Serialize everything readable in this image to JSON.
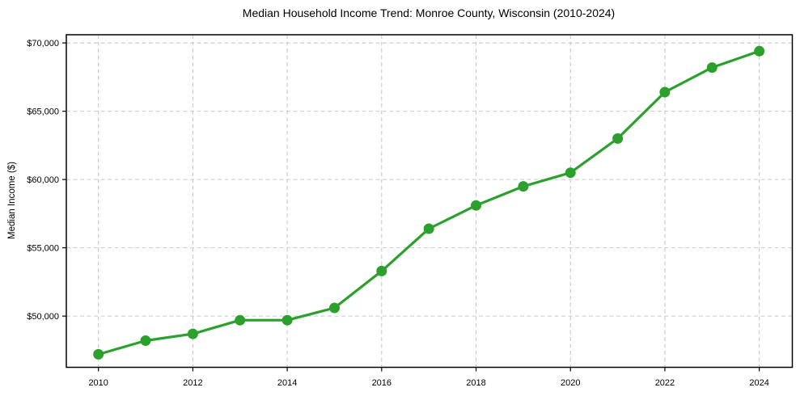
{
  "chart_data": {
    "type": "line",
    "title": "Median Household Income Trend: Monroe County, Wisconsin (2010-2024)",
    "xlabel": "",
    "ylabel": "Median Income ($)",
    "x": [
      2010,
      2011,
      2012,
      2013,
      2014,
      2015,
      2016,
      2017,
      2018,
      2019,
      2020,
      2021,
      2022,
      2023,
      2024
    ],
    "series": [
      {
        "name": "Median Household Income",
        "values": [
          47200,
          48200,
          48700,
          49700,
          49700,
          50600,
          53300,
          56400,
          58100,
          59500,
          60500,
          63000,
          66400,
          68200,
          69400
        ]
      }
    ],
    "x_ticks": [
      2010,
      2012,
      2014,
      2016,
      2018,
      2020,
      2022,
      2024
    ],
    "x_tick_labels": [
      "2010",
      "2012",
      "2014",
      "2016",
      "2018",
      "2020",
      "2022",
      "2024"
    ],
    "y_ticks": [
      50000,
      55000,
      60000,
      65000,
      70000
    ],
    "y_tick_labels": [
      "$50,000",
      "$55,000",
      "$60,000",
      "$65,000",
      "$70,000"
    ],
    "xlim": [
      2009.32,
      2024.7
    ],
    "ylim": [
      46250,
      70600
    ],
    "grid": true,
    "grid_style": "dashed",
    "legend": "none",
    "line_color": "#2ca02c",
    "marker": "circle",
    "background_color": "#ffffff",
    "grid_color": "#c9c9c9",
    "spine_color": "#000000",
    "text_color": "#000000"
  }
}
